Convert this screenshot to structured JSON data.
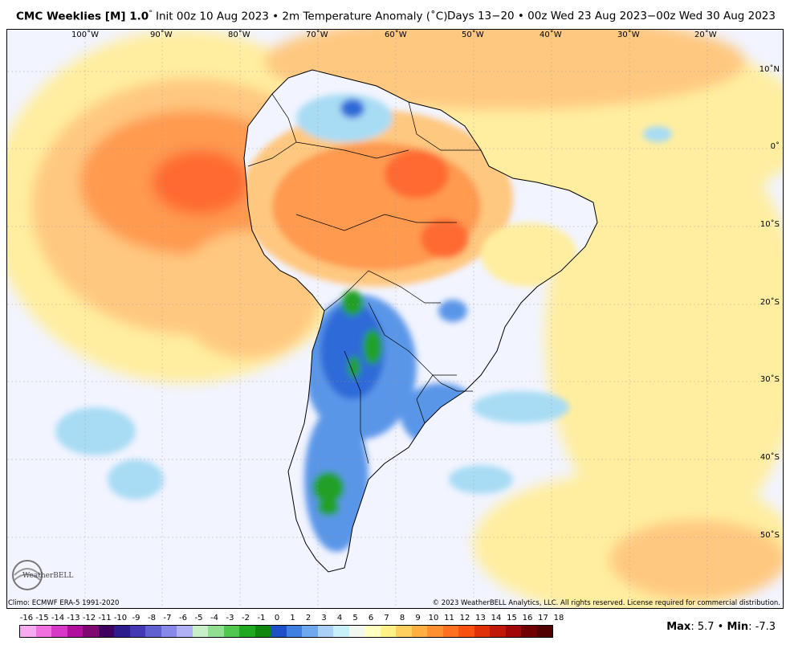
{
  "header": {
    "title_bold": "CMC Weeklies [M] 1.0",
    "degree": "°",
    "title_rest": " Init 00z 10 Aug 2023 • 2m Temperature Anomaly (˚C)",
    "valid": "Days 13−20 • 00z Wed 23 Aug 2023−00z Wed 30 Aug 2023"
  },
  "map": {
    "lon_labels": [
      "100˚W",
      "90˚W",
      "80˚W",
      "70˚W",
      "60˚W",
      "50˚W",
      "40˚W",
      "30˚W",
      "20˚W"
    ],
    "lat_labels": [
      "10˚N",
      "0˚",
      "10˚S",
      "20˚S",
      "30˚S",
      "40˚S",
      "50˚S"
    ],
    "max_anomaly": 5.7,
    "min_anomaly": -7.3
  },
  "footer": {
    "climo": "Climo: ECMWF ERA-5 1991-2020",
    "copyright": "© 2023 WeatherBELL Analytics, LLC. All rights reserved. License required for commercial distribution.",
    "max_label": "Max",
    "max_value": ": 5.7 • ",
    "min_label": "Min",
    "min_value": ": -7.3",
    "logo_text": "WeatherBELL"
  },
  "colorbar": {
    "labels": [
      "-16",
      "-15",
      "-14",
      "-13",
      "-12",
      "-11",
      "-10",
      "-9",
      "-8",
      "-7",
      "-6",
      "-5",
      "-4",
      "-3",
      "-2",
      "-1",
      "0",
      "1",
      "2",
      "3",
      "4",
      "5",
      "6",
      "7",
      "8",
      "9",
      "10",
      "11",
      "12",
      "13",
      "14",
      "15",
      "16",
      "17",
      "18"
    ],
    "colors": [
      "#f9a9f0",
      "#f070e0",
      "#d838c8",
      "#b0109c",
      "#800870",
      "#400060",
      "#2c1c8c",
      "#4438b4",
      "#6060d0",
      "#8888e8",
      "#b0b0f4",
      "#c8f0c8",
      "#90e090",
      "#50c850",
      "#20a820",
      "#108810",
      "#2050c8",
      "#4080e0",
      "#70a8f0",
      "#a8d0f8",
      "#c8f0f8",
      "#f0f8f0",
      "#ffffc0",
      "#fff088",
      "#ffd060",
      "#ffb040",
      "#ff9030",
      "#ff7020",
      "#f85010",
      "#e03008",
      "#c01808",
      "#a00808",
      "#700000",
      "#500000"
    ]
  },
  "colors": {
    "ocean_neutral": "#f2f4ff",
    "warm_light": "#ffeea0",
    "warm_med": "#ffc880",
    "warm_strong": "#ff9a50",
    "warm_peak": "#ff6a30",
    "cold_light": "#a8dcf4",
    "cold_med": "#5a96e8",
    "cold_strong": "#2f6ad8",
    "cold_peak": "#22a028"
  }
}
